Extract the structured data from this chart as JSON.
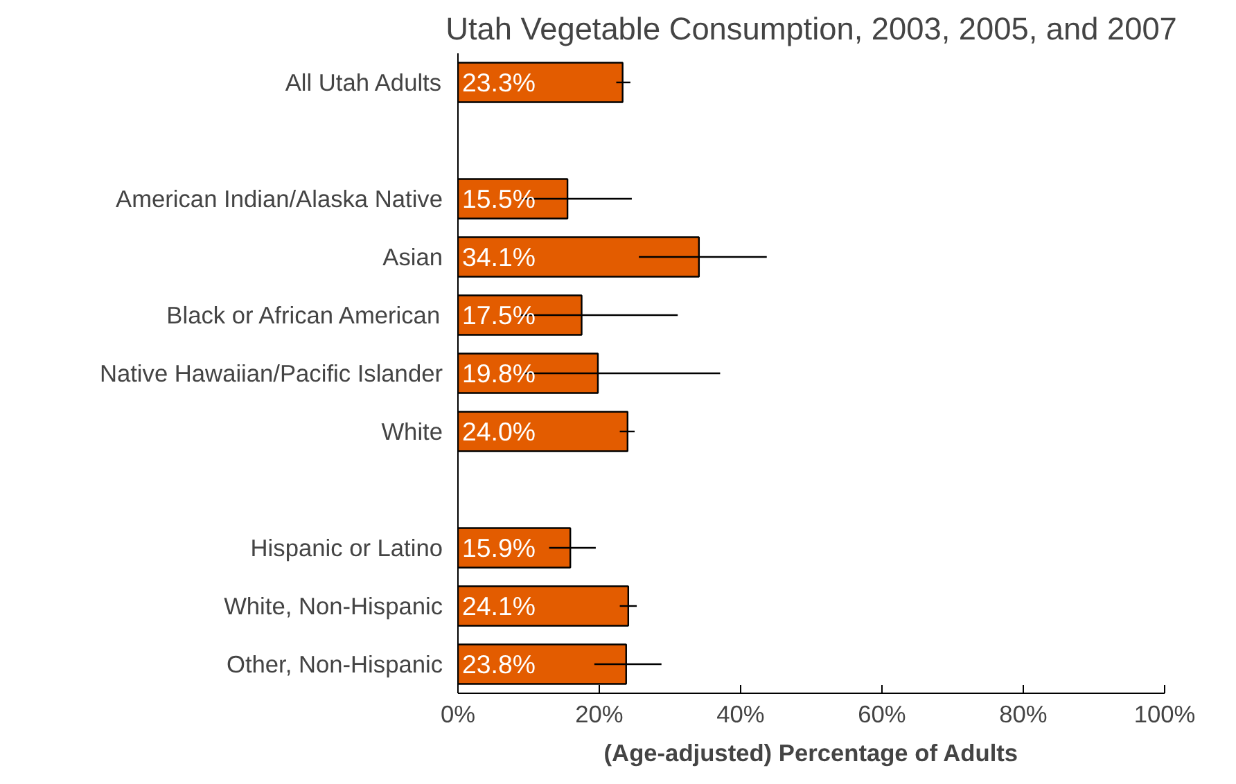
{
  "chart_data": {
    "type": "bar",
    "orientation": "horizontal",
    "title": "Utah Vegetable Consumption, 2003, 2005, and 2007",
    "xlabel": "(Age-adjusted) Percentage of Adults",
    "categories": [
      "All Utah Adults",
      null,
      "American Indian/Alaska Native",
      "Asian",
      "Black or African American",
      "Native Hawaiian/Pacific Islander",
      "White",
      null,
      "Hispanic or Latino",
      "White, Non-Hispanic",
      "Other, Non-Hispanic"
    ],
    "values": [
      23.3,
      null,
      15.5,
      34.1,
      17.5,
      19.8,
      24.0,
      null,
      15.9,
      24.1,
      23.8
    ],
    "errors": [
      [
        22.4,
        24.4
      ],
      null,
      [
        9.1,
        24.6
      ],
      [
        25.6,
        43.7
      ],
      [
        8.8,
        31.1
      ],
      [
        9.4,
        37.1
      ],
      [
        22.9,
        25.0
      ],
      null,
      [
        12.9,
        19.5
      ],
      [
        22.9,
        25.3
      ],
      [
        19.3,
        28.8
      ]
    ],
    "value_labels": [
      "23.3%",
      null,
      "15.5%",
      "34.1%",
      "17.5%",
      "19.8%",
      "24.0%",
      null,
      "15.9%",
      "24.1%",
      "23.8%"
    ],
    "color": "#e35c00",
    "xlim": [
      0,
      100
    ],
    "xticks": [
      {
        "value": 0,
        "label": "0%"
      },
      {
        "value": 20,
        "label": "20%"
      },
      {
        "value": 40,
        "label": "40%"
      },
      {
        "value": 60,
        "label": "60%"
      },
      {
        "value": 80,
        "label": "80%"
      },
      {
        "value": 100,
        "label": "100%"
      }
    ],
    "grid": false
  }
}
